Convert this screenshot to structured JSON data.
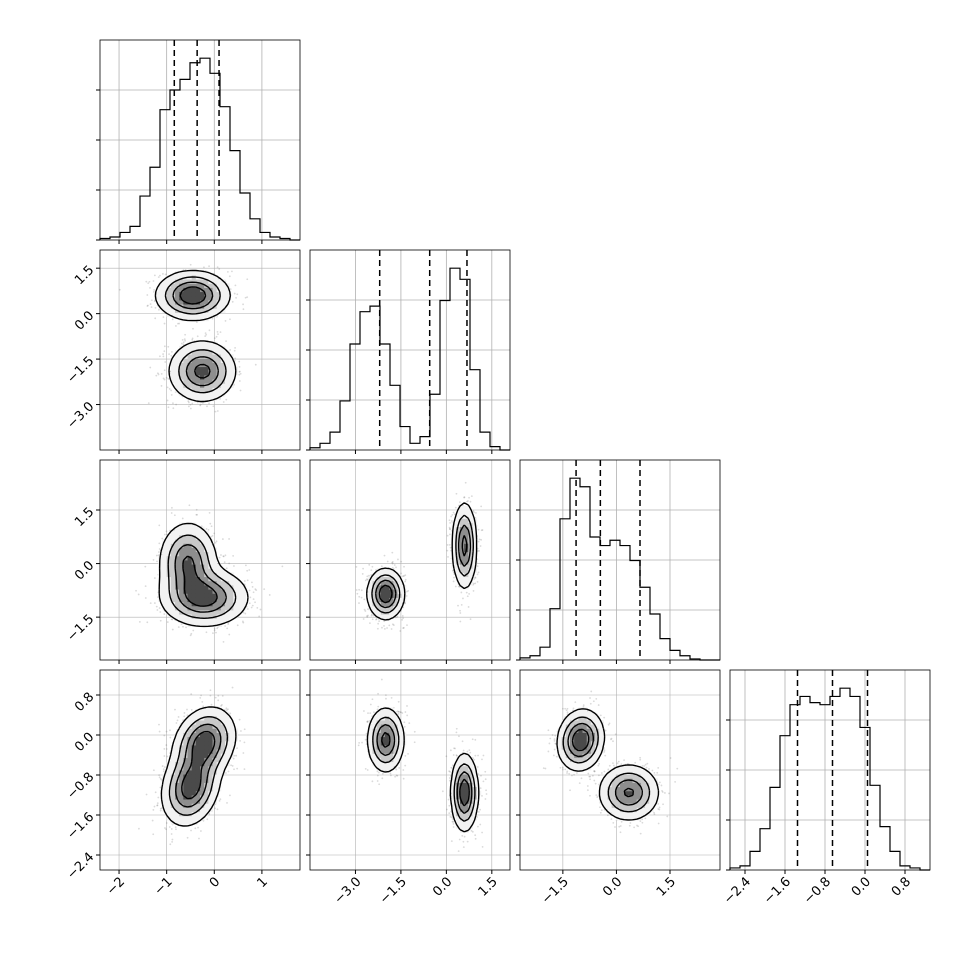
{
  "chart_data": {
    "type": "corner",
    "variables": [
      {
        "name": "",
        "range": [
          -2.4,
          1.8
        ],
        "ticks": [
          -2,
          -1,
          0,
          1
        ],
        "tick_labels": [
          "−2",
          "−1",
          "0",
          "1"
        ],
        "quantiles": [
          -0.84,
          -0.36,
          0.1
        ],
        "hist": [
          0.01,
          0.02,
          0.05,
          0.09,
          0.29,
          0.48,
          0.86,
          0.99,
          1.06,
          1.17,
          1.2,
          1.1,
          0.88,
          0.59,
          0.31,
          0.14,
          0.05,
          0.02,
          0.01,
          0.0
        ]
      },
      {
        "name": "",
        "range": [
          -4.5,
          2.1
        ],
        "ticks": [
          -3.0,
          -1.5,
          0.0,
          1.5
        ],
        "tick_labels": [
          "−3.0",
          "−1.5",
          "0.0",
          "1.5"
        ],
        "quantiles": [
          -2.2,
          -0.55,
          0.68
        ],
        "hist": [
          0.02,
          0.06,
          0.16,
          0.44,
          0.95,
          1.24,
          1.29,
          0.95,
          0.58,
          0.21,
          0.06,
          0.12,
          0.5,
          1.34,
          1.63,
          1.53,
          0.72,
          0.16,
          0.03,
          0.0
        ]
      },
      {
        "name": "",
        "range": [
          -2.7,
          2.9
        ],
        "ticks": [
          -1.5,
          0.0,
          1.5
        ],
        "tick_labels": [
          "−1.5",
          "0.0",
          "1.5"
        ],
        "quantiles": [
          -1.13,
          -0.45,
          0.66
        ],
        "hist": [
          0.02,
          0.04,
          0.12,
          0.48,
          1.32,
          1.7,
          1.62,
          1.15,
          1.07,
          1.12,
          1.07,
          0.93,
          0.68,
          0.43,
          0.2,
          0.09,
          0.04,
          0.01,
          0.0,
          0.0
        ]
      },
      {
        "name": "",
        "range": [
          -2.7,
          1.3
        ],
        "ticks": [
          -2.4,
          -1.6,
          -0.8,
          0.0,
          0.8
        ],
        "tick_labels": [
          "−2.4",
          "−1.6",
          "−0.8",
          "0.0",
          "0.8"
        ],
        "quantiles": [
          -1.35,
          -0.65,
          0.05
        ],
        "hist": [
          0.01,
          0.02,
          0.09,
          0.2,
          0.4,
          0.65,
          0.8,
          0.84,
          0.81,
          0.8,
          0.84,
          0.88,
          0.84,
          0.69,
          0.41,
          0.21,
          0.09,
          0.02,
          0.01,
          0.0
        ]
      }
    ],
    "pairs": [
      {
        "x": 0,
        "y": 1,
        "modes": [
          {
            "x": -0.45,
            "y": 0.6,
            "sx": 0.38,
            "sy": 0.4,
            "r": 0.0,
            "w": 0.5
          },
          {
            "x": -0.25,
            "y": -1.9,
            "sx": 0.35,
            "sy": 0.5,
            "r": 0.0,
            "w": 0.5
          }
        ]
      },
      {
        "x": 0,
        "y": 2,
        "modes": [
          {
            "x": -0.55,
            "y": 0.05,
            "sx": 0.3,
            "sy": 0.55,
            "r": 0.0,
            "w": 0.45
          },
          {
            "x": -0.2,
            "y": -0.95,
            "sx": 0.45,
            "sy": 0.4,
            "r": 0.0,
            "w": 0.55
          }
        ]
      },
      {
        "x": 0,
        "y": 3,
        "modes": [
          {
            "x": -0.2,
            "y": -0.15,
            "sx": 0.32,
            "sy": 0.35,
            "r": 0.2,
            "w": 0.5
          },
          {
            "x": -0.5,
            "y": -1.05,
            "sx": 0.3,
            "sy": 0.38,
            "r": 0.2,
            "w": 0.5
          }
        ]
      },
      {
        "x": 1,
        "y": 2,
        "modes": [
          {
            "x": -2.0,
            "y": -0.85,
            "sx": 0.3,
            "sy": 0.35,
            "r": 0.0,
            "w": 0.5
          },
          {
            "x": 0.6,
            "y": 0.5,
            "sx": 0.2,
            "sy": 0.6,
            "r": 0.0,
            "w": 0.5
          }
        ]
      },
      {
        "x": 1,
        "y": 3,
        "modes": [
          {
            "x": -2.0,
            "y": -0.1,
            "sx": 0.3,
            "sy": 0.32,
            "r": 0.0,
            "w": 0.5
          },
          {
            "x": 0.6,
            "y": -1.15,
            "sx": 0.22,
            "sy": 0.38,
            "r": 0.0,
            "w": 0.5
          }
        ]
      },
      {
        "x": 2,
        "y": 3,
        "modes": [
          {
            "x": -1.0,
            "y": -0.1,
            "sx": 0.32,
            "sy": 0.3,
            "r": 0.1,
            "w": 0.5
          },
          {
            "x": 0.35,
            "y": -1.15,
            "sx": 0.42,
            "sy": 0.28,
            "r": 0.0,
            "w": 0.5
          }
        ]
      }
    ],
    "grid": true,
    "line_color": "#000000",
    "grid_color": "#b0b0b0",
    "point_color": "#6b6b6b"
  }
}
